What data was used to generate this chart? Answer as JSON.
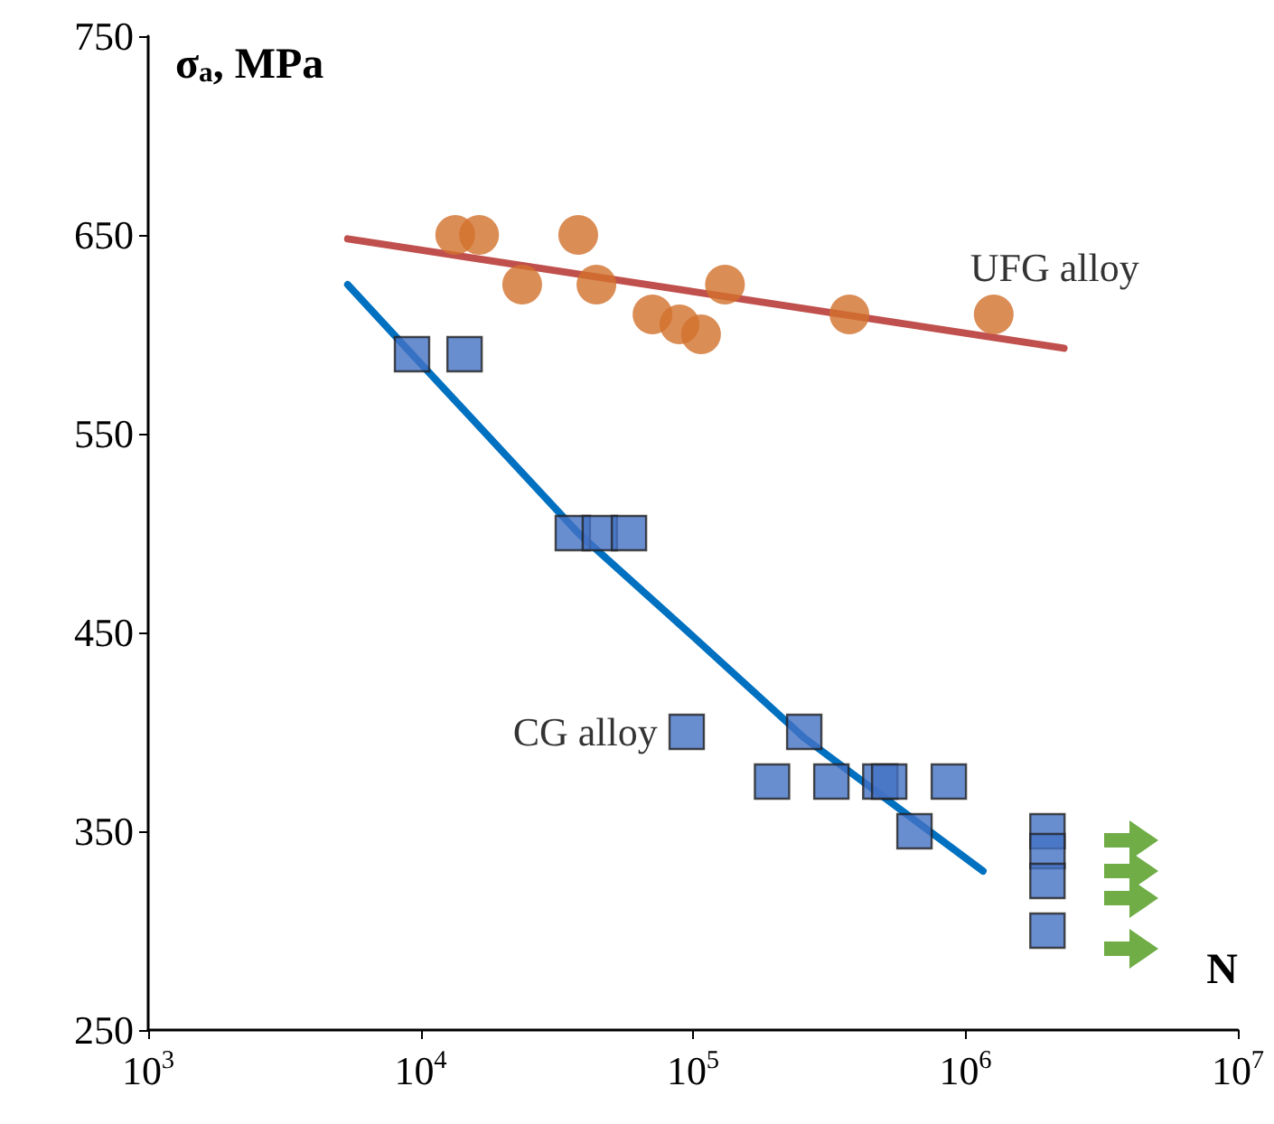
{
  "chart_data": {
    "type": "scatter",
    "xlabel": "N",
    "ylabel": "σ$_{a}$, MPa",
    "log": "x",
    "grid": false,
    "legend": false,
    "xlim": [
      1000,
      10000000
    ],
    "xticks": [
      {
        "value": 1000,
        "label": "10$^{3}$"
      },
      {
        "value": 10000,
        "label": "10$^{4}$"
      },
      {
        "value": 100000,
        "label": "10$^{5}$"
      },
      {
        "value": 1000000,
        "label": "10$^{6}$"
      },
      {
        "value": 10000000,
        "label": "10$^{7}$"
      }
    ],
    "ylim": [
      250,
      750
    ],
    "yticks": [
      250,
      350,
      450,
      550,
      650,
      750
    ],
    "series": [
      {
        "name": "UFG alloy",
        "marker": "circle",
        "color": "#d2702c",
        "x": [
          13400,
          16400,
          23600,
          37900,
          44200,
          71000,
          89200,
          107000,
          131000,
          375000,
          1270000
        ],
        "values": [
          650,
          650,
          625,
          650,
          625,
          610,
          605,
          600,
          625,
          610,
          610
        ]
      },
      {
        "type": "line",
        "marker": "none",
        "color": "#c0504d",
        "x": [
          5400,
          2300000
        ],
        "values": [
          648,
          593
        ]
      },
      {
        "name": "CG alloy",
        "marker": "square",
        "color": "#4472c4",
        "x": [
          9300,
          14500,
          36200,
          45500,
          58200,
          94800,
          256000,
          195000,
          322000,
          487000,
          525000,
          869000,
          650000,
          2000000,
          2000000,
          2000000,
          2000000
        ],
        "values": [
          590,
          590,
          500,
          500,
          500,
          400,
          400,
          375,
          375,
          375,
          375,
          375,
          350,
          350,
          340,
          325,
          300
        ]
      },
      {
        "type": "line",
        "marker": "none",
        "color": "#0070c0",
        "x": [
          5400,
          9300,
          37900,
          100000,
          256000,
          1160000
        ],
        "values": [
          625,
          590,
          500,
          448,
          397,
          330
        ]
      }
    ]
  }
}
